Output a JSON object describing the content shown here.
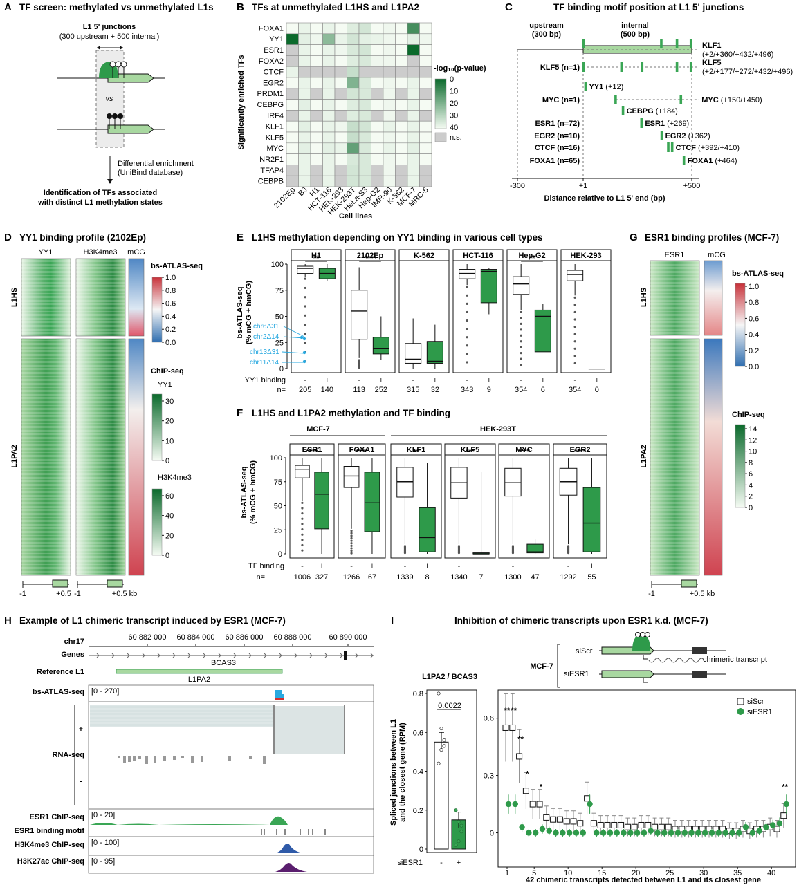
{
  "panels": {
    "A": {
      "letter": "A",
      "title": "TF screen: methylated vs unmethylated L1s",
      "junction_title": "L1 5' junctions",
      "junction_sub": "(300 upstream + 500 internal)",
      "vs": "vs",
      "arrow_text1": "Differential enrichment",
      "arrow_text2": "(UniBind database)",
      "result1": "Identification of TFs associated",
      "result2": "with distinct L1 methylation states"
    },
    "B": {
      "letter": "B",
      "title": "TFs at unmethylated L1HS and L1PA2",
      "ylabel": "Significantly enriched TFs",
      "xlabel": "Cell lines",
      "legend_title": "-log₁₀(p-value)",
      "legend_ticks": [
        "0",
        "10",
        "20",
        "30",
        "40"
      ],
      "ns_label": "n.s.",
      "tfs": [
        "FOXA1",
        "YY1",
        "ESR1",
        "FOXA2",
        "CTCF",
        "EGR2",
        "PRDM1",
        "CEBPG",
        "IRF4",
        "KLF1",
        "KLF5",
        "MYC",
        "NR2F1",
        "TFAP4",
        "CEBPB"
      ],
      "cells": [
        "2102Ep",
        "BJ",
        "H1",
        "HCT-116",
        "HEK-293",
        "HEK-293T",
        "HeLa-S3",
        "Hep-G2",
        "IMR-90",
        "K-562",
        "MCF-7",
        "MRC-5"
      ],
      "matrix": [
        [
          0,
          2,
          0,
          2,
          0,
          4,
          6,
          0,
          1,
          0,
          30,
          0
        ],
        [
          40,
          3,
          1,
          18,
          2,
          6,
          3,
          2,
          1,
          0,
          3,
          1
        ],
        [
          -1,
          2,
          0,
          2,
          1,
          5,
          6,
          0,
          1,
          0,
          42,
          0
        ],
        [
          -1,
          2,
          0,
          2,
          0,
          4,
          5,
          1,
          1,
          0,
          -1,
          0
        ],
        [
          2,
          -1,
          -1,
          -1,
          -1,
          8,
          -1,
          -1,
          -1,
          -1,
          -1,
          -1
        ],
        [
          0,
          2,
          0,
          2,
          0,
          20,
          5,
          0,
          1,
          0,
          2,
          0
        ],
        [
          -1,
          2,
          -1,
          2,
          -1,
          6,
          5,
          -1,
          1,
          -1,
          2,
          -1
        ],
        [
          0,
          3,
          0,
          2,
          0,
          4,
          5,
          0,
          1,
          0,
          2,
          0
        ],
        [
          -1,
          2,
          -1,
          2,
          -1,
          4,
          5,
          -1,
          1,
          -1,
          2,
          -1
        ],
        [
          0,
          3,
          0,
          2,
          1,
          8,
          6,
          0,
          2,
          0,
          2,
          0
        ],
        [
          0,
          2,
          0,
          2,
          0,
          8,
          5,
          0,
          1,
          0,
          2,
          0
        ],
        [
          0,
          3,
          0,
          3,
          2,
          25,
          5,
          0,
          2,
          0,
          3,
          0
        ],
        [
          0,
          2,
          0,
          2,
          0,
          5,
          5,
          0,
          1,
          0,
          2,
          0
        ],
        [
          -1,
          2,
          -1,
          2,
          -1,
          6,
          5,
          -1,
          1,
          -1,
          2,
          -1
        ],
        [
          -1,
          2,
          -1,
          2,
          -1,
          6,
          5,
          -1,
          1,
          -1,
          2,
          -1
        ]
      ]
    },
    "C": {
      "letter": "C",
      "title": "TF binding motif position at L1 5' junctions",
      "upstream": "upstream",
      "upstream_bp": "(300 bp)",
      "internal": "internal",
      "internal_bp": "(500 bp)",
      "xlabel": "Distance relative to L1 5' end (bp)",
      "x_ticks": [
        "-300",
        "+1",
        "+500"
      ],
      "rows": [
        {
          "left": "",
          "right": "KLF1",
          "right_sub": "(+2/+360/+432/+496)",
          "pos": [
            2,
            360,
            432,
            496
          ]
        },
        {
          "left": "KLF5 (n=1)",
          "right": "KLF5",
          "right_sub": "(+2/+177/+272/+432/+496)",
          "pos": [
            2,
            177,
            272,
            432,
            496
          ]
        },
        {
          "left": "",
          "right": "YY1 (+12)",
          "right_sub": "",
          "pos": [
            12
          ]
        },
        {
          "left": "MYC (n=1)",
          "right": "MYC (+150/+450)",
          "right_sub": "",
          "pos": [
            150,
            450
          ]
        },
        {
          "left": "",
          "right": "CEBPG (+184)",
          "right_sub": "",
          "pos": [
            184
          ]
        },
        {
          "left": "ESR1 (n=72)",
          "right": "ESR1 (+269)",
          "right_sub": "",
          "pos": [
            269
          ]
        },
        {
          "left": "EGR2 (n=10)",
          "right": "EGR2 (+362)",
          "right_sub": "",
          "pos": [
            362
          ]
        },
        {
          "left": "CTCF (n=16)",
          "right": "CTCF (+392/+410)",
          "right_sub": "",
          "pos": [
            392,
            410
          ]
        },
        {
          "left": "FOXA1 (n=65)",
          "right": "FOXA1 (+464)",
          "right_sub": "",
          "pos": [
            464
          ]
        }
      ]
    },
    "D": {
      "letter": "D",
      "title": "YY1 binding profile (2102Ep)",
      "cols": [
        "YY1",
        "H3K4me3",
        "mCG"
      ],
      "rows": [
        "L1HS",
        "L1PA2"
      ],
      "axis_left": "-1",
      "axis_right": "+0.5",
      "axis_right2": "+0.5 kb",
      "axis_left2": "-1",
      "legend1_title": "bs-ATLAS-seq",
      "legend1_ticks": [
        "1.0",
        "0.8",
        "0.6",
        "0.4",
        "0.2",
        "0.0"
      ],
      "legend2_title": "ChIP-seq",
      "legend2_sub1": "YY1",
      "legend2_ticks1": [
        "30",
        "20",
        "10",
        "0"
      ],
      "legend2_sub2": "H3K4me3",
      "legend2_ticks2": [
        "60",
        "40",
        "20",
        "0"
      ]
    },
    "E": {
      "letter": "E",
      "title": "L1HS methylation depending on YY1 binding in various cell types",
      "ylabel1": "bs-ATLAS-seq",
      "ylabel2": "(% mCG + hmCG)",
      "y_ticks": [
        "100",
        "75",
        "50",
        "25",
        "0"
      ],
      "binding_label": "YY1 binding",
      "n_label": "n=",
      "highlight": [
        "chr6Δ31",
        "chr2Δ14",
        "chr13Δ31",
        "chr11Δ14"
      ]
    },
    "F": {
      "letter": "F",
      "title": "L1HS and L1PA2 methylation and TF binding",
      "group1": "MCF-7",
      "group2": "HEK-293T",
      "ylabel1": "bs-ATLAS-seq",
      "ylabel2": "(% mCG + hmCG)",
      "y_ticks": [
        "100",
        "75",
        "50",
        "25",
        "0"
      ],
      "binding_label": "TF binding",
      "n_label": "n="
    },
    "G": {
      "letter": "G",
      "title": "ESR1 binding profiles (MCF-7)",
      "cols": [
        "ESR1",
        "mCG"
      ],
      "rows": [
        "L1HS",
        "L1PA2"
      ],
      "axis_left": "-1",
      "axis_right": "+0.5 kb",
      "legend1_title": "bs-ATLAS-seq",
      "legend1_ticks": [
        "1.0",
        "0.8",
        "0.6",
        "0.4",
        "0.2",
        "0.0"
      ],
      "legend2_title": "ChIP-seq",
      "legend2_ticks": [
        "14",
        "12",
        "10",
        "8",
        "6",
        "4",
        "2",
        "0"
      ]
    },
    "H": {
      "letter": "H",
      "title": "Example of L1 chimeric transcript induced by ESR1 (MCF-7)",
      "chrom": "chr17",
      "coords": [
        "60 882 000",
        "60 884 000",
        "60 886 000",
        "60 888 000",
        "60 890 000"
      ],
      "tracks": {
        "genes": "Genes",
        "gene_name": "BCAS3",
        "ref": "Reference L1",
        "ref_name": "L1PA2",
        "bs": "bs-ATLAS-seq",
        "bs_range": "[0 - 270]",
        "rna": "RNA-seq",
        "plus": "+",
        "minus": "-",
        "esr1": "ESR1 ChIP-seq",
        "esr1_range": "[0 - 20]",
        "motif": "ESR1 binding motif",
        "h3k4": "H3K4me3 ChIP-seq",
        "h3k4_range": "[0 - 100]",
        "h3k27": "H3K27ac ChIP-seq",
        "h3k27_range": "[0 - 95]"
      }
    },
    "I": {
      "letter": "I",
      "title": "Inhibition of chimeric transcripts upon ESR1 k.d. (MCF-7)",
      "bar_title": "L1PA2 / BCAS3",
      "bar_ylabel1": "Spliced junctions between L1",
      "bar_ylabel2": "and the closest gene (RPM)",
      "bar_y_ticks": [
        "0.8",
        "0.6",
        "0.4",
        "0.2",
        "0"
      ],
      "pval": "0.0022",
      "siESR1_label": "siESR1",
      "cond_labels": [
        "-",
        "+"
      ],
      "schema_cell": "MCF-7",
      "siScr": "siScr",
      "siESR1": "siESR1",
      "chimeric": "chrimeric transcript",
      "legend": [
        "siScr",
        "siESR1"
      ],
      "xlabel": "42 chimeric transcripts detected between L1 and its closest gene",
      "x_ticks": [
        "1",
        "5",
        "10",
        "15",
        "20",
        "25",
        "30",
        "35",
        "40"
      ],
      "y_ticks": [
        "0.6",
        "0.3",
        "0"
      ],
      "sig_labels": [
        "**",
        "**",
        "**",
        "*",
        "*",
        "**"
      ]
    }
  },
  "chart_data": [
    {
      "type": "heatmap",
      "panel": "B",
      "title": "TFs at unmethylated L1HS and L1PA2",
      "xlabel": "Cell lines",
      "ylabel": "Significantly enriched TFs",
      "note": "-1 = n.s."
    },
    {
      "type": "box",
      "panel": "E",
      "title": "L1HS methylation depending on YY1 binding in various cell types",
      "ylim": [
        0,
        100
      ],
      "groups": [
        {
          "name": "H1",
          "sig": "**",
          "n": [
            205,
            140
          ],
          "box": [
            [
              88,
              91,
              96,
              98,
              100
            ],
            [
              84,
              86,
              91,
              96,
              100
            ]
          ]
        },
        {
          "name": "2102Ep",
          "sig": "****",
          "n": [
            113,
            252
          ],
          "box": [
            [
              10,
              28,
              55,
              75,
              97
            ],
            [
              8,
              14,
              19,
              30,
              50
            ]
          ]
        },
        {
          "name": "K-562",
          "sig": "",
          "n": [
            315,
            32
          ],
          "box": [
            [
              0,
              5,
              9,
              24,
              48
            ],
            [
              0,
              5,
              7,
              26,
              42
            ]
          ]
        },
        {
          "name": "HCT-116",
          "sig": "",
          "n": [
            343,
            9
          ],
          "box": [
            [
              80,
              86,
              91,
              95,
              100
            ],
            [
              52,
              63,
              93,
              95,
              96
            ]
          ]
        },
        {
          "name": "Hep-G2",
          "sig": "**",
          "n": [
            354,
            6
          ],
          "box": [
            [
              56,
              71,
              81,
              88,
              100
            ],
            [
              16,
              16,
              50,
              56,
              62
            ]
          ]
        },
        {
          "name": "HEK-293",
          "sig": "",
          "n": [
            354,
            0
          ],
          "box": [
            [
              70,
              84,
              90,
              94,
              100
            ],
            null
          ]
        }
      ]
    },
    {
      "type": "box",
      "panel": "F",
      "title": "L1HS and L1PA2 methylation and TF binding",
      "ylim": [
        0,
        100
      ],
      "groups": [
        {
          "name": "ESR1",
          "cell": "MCF-7",
          "sig": "****",
          "n": [
            1006,
            327
          ],
          "box": [
            [
              55,
              79,
              88,
              92,
              100
            ],
            [
              0,
              26,
              62,
              85,
              100
            ]
          ]
        },
        {
          "name": "FOXA1",
          "cell": "MCF-7",
          "sig": "****",
          "n": [
            1266,
            67
          ],
          "box": [
            [
              26,
              69,
              81,
              91,
              100
            ],
            [
              0,
              23,
              53,
              85,
              100
            ]
          ]
        },
        {
          "name": "KLF1",
          "cell": "HEK-293T",
          "sig": "**",
          "n": [
            1339,
            8
          ],
          "box": [
            [
              10,
              59,
              75,
              90,
              100
            ],
            [
              0,
              2,
              17,
              48,
              95
            ]
          ]
        },
        {
          "name": "KLF5",
          "cell": "HEK-293T",
          "sig": "***",
          "n": [
            1340,
            7
          ],
          "box": [
            [
              10,
              58,
              74,
              90,
              100
            ],
            [
              0,
              0,
              0,
              1,
              85
            ]
          ]
        },
        {
          "name": "MYC",
          "cell": "HEK-293T",
          "sig": "****",
          "n": [
            1300,
            47
          ],
          "box": [
            [
              10,
              60,
              74,
              89,
              100
            ],
            [
              0,
              1,
              2,
              10,
              15
            ]
          ]
        },
        {
          "name": "EGR2",
          "cell": "HEK-293T",
          "sig": "****",
          "n": [
            1292,
            55
          ],
          "box": [
            [
              10,
              61,
              75,
              89,
              100
            ],
            [
              0,
              2,
              32,
              69,
              100
            ]
          ]
        }
      ]
    },
    {
      "type": "bar",
      "panel": "I-left",
      "title": "L1PA2 / BCAS3",
      "categories": [
        "-",
        "+"
      ],
      "values": [
        0.55,
        0.15
      ],
      "errors": [
        0.05,
        0.04
      ],
      "ylim": [
        0,
        0.8
      ],
      "points": [
        [
          0.8,
          0.62,
          0.53,
          0.44,
          0.51,
          0.56
        ],
        [
          0.2,
          0.14,
          0.09,
          0.02,
          0.04,
          0.12
        ]
      ]
    },
    {
      "type": "scatter",
      "panel": "I-right",
      "xlabel": "42 chimeric transcripts detected between L1 and its closest gene",
      "ylim": [
        -0.15,
        0.7
      ],
      "series": [
        {
          "name": "siScr",
          "values": [
            0.55,
            0.55,
            0.4,
            0.22,
            0.15,
            0.15,
            0.08,
            0.07,
            0.07,
            0.06,
            0.06,
            0.05,
            0.18,
            0.05,
            0.04,
            0.04,
            0.04,
            0.04,
            0.03,
            0.03,
            0.04,
            0.04,
            0.03,
            0.03,
            0.03,
            0.02,
            0.02,
            0.02,
            0.02,
            0.02,
            0.02,
            0.02,
            0.02,
            0.01,
            0.01,
            0.02,
            0.01,
            0.02,
            0.02,
            0.03,
            0.02,
            0.09
          ]
        },
        {
          "name": "siESR1",
          "values": [
            0.15,
            0.15,
            0.03,
            0.0,
            0.0,
            0.02,
            0.01,
            0.0,
            0.0,
            0.0,
            0.0,
            0.0,
            0.15,
            0.0,
            0.0,
            0.0,
            0.0,
            0.0,
            0.0,
            0.0,
            0.0,
            0.01,
            0.0,
            0.0,
            0.0,
            0.0,
            0.0,
            0.0,
            0.0,
            0.0,
            0.0,
            0.0,
            0.0,
            0.0,
            0.0,
            0.03,
            0.0,
            0.01,
            0.03,
            0.04,
            0.05,
            0.15
          ]
        }
      ],
      "significance": {
        "1": "**",
        "2": "**",
        "3": "**",
        "4": "*",
        "6": "*",
        "42": "**"
      }
    }
  ],
  "colors": {
    "green_dark": "#1e8a3e",
    "green_mid": "#3aa655",
    "green_light": "#a8d8a0",
    "box_green": "#2e9a4a",
    "cyan": "#29a9e0",
    "gray_ns": "#cccccc"
  }
}
